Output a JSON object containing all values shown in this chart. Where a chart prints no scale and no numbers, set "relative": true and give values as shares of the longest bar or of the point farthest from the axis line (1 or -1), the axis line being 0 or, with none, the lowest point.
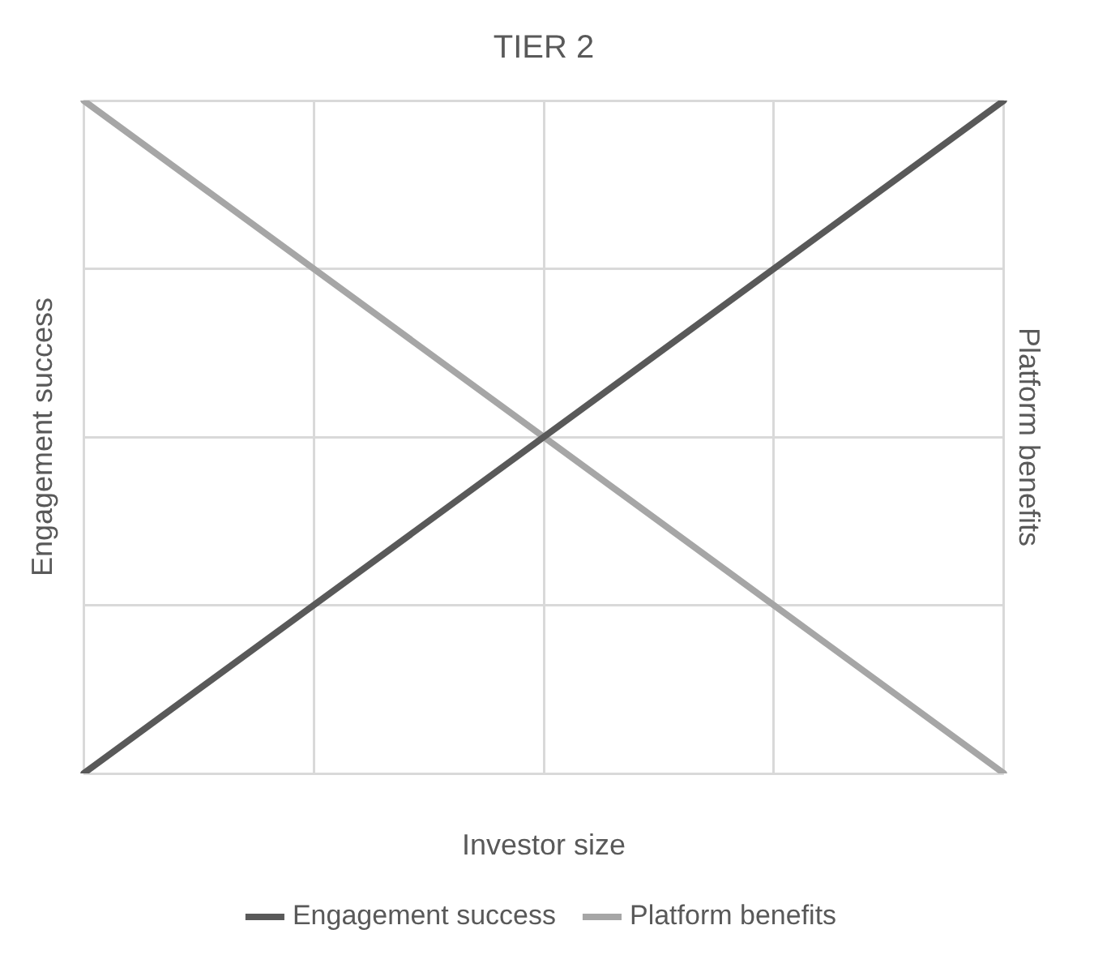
{
  "chart_data": {
    "type": "line",
    "title": "TIER 2",
    "xlabel": "Investor size",
    "ylabel": "Engagement success",
    "y2label": "Platform benefits",
    "relative": true,
    "categories": [
      null,
      null,
      null,
      null,
      null
    ],
    "series": [
      {
        "name": "Engagement success",
        "color": "#595959",
        "values": [
          0,
          0.25,
          0.5,
          0.75,
          1
        ]
      },
      {
        "name": "Platform benefits",
        "color": "#a6a6a6",
        "values": [
          1,
          0.75,
          0.5,
          0.25,
          0
        ]
      }
    ],
    "grid": true,
    "legend": "bottom",
    "marker": "none",
    "line_style": "solid"
  }
}
